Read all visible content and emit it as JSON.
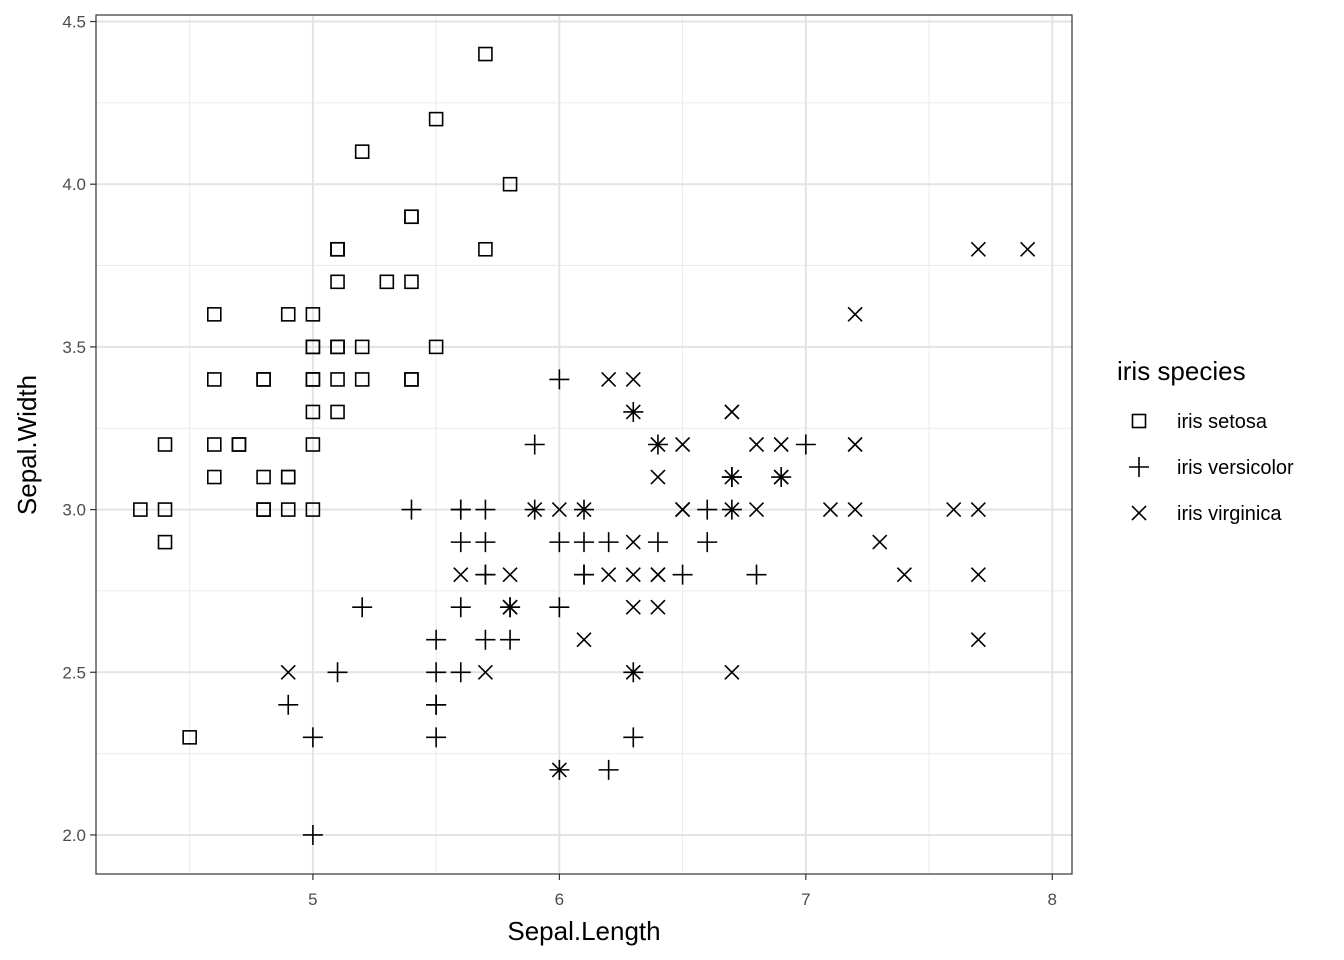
{
  "chart_data": {
    "type": "scatter",
    "title": "",
    "xlabel": "Sepal.Length",
    "ylabel": "Sepal.Width",
    "xlim": [
      4.12,
      8.08
    ],
    "ylim": [
      1.88,
      4.52
    ],
    "x_ticks": [
      5,
      6,
      7,
      8
    ],
    "y_ticks": [
      2.0,
      2.5,
      3.0,
      3.5,
      4.0,
      4.5
    ],
    "x_tick_labels": [
      "5",
      "6",
      "7",
      "8"
    ],
    "y_tick_labels": [
      "2.0",
      "2.5",
      "3.0",
      "3.5",
      "4.0",
      "4.5"
    ],
    "grid": true,
    "legend": {
      "title": "iris species",
      "placement": "right"
    },
    "series": [
      {
        "name": "iris setosa",
        "marker": "square",
        "x": [
          5.1,
          4.9,
          4.7,
          4.6,
          5.0,
          5.4,
          4.6,
          5.0,
          4.4,
          4.9,
          5.4,
          4.8,
          4.8,
          4.3,
          5.8,
          5.7,
          5.4,
          5.1,
          5.7,
          5.1,
          5.4,
          5.1,
          4.6,
          5.1,
          4.8,
          5.0,
          5.0,
          5.2,
          5.2,
          4.7,
          4.8,
          5.4,
          5.2,
          5.5,
          4.9,
          5.0,
          5.5,
          4.9,
          4.4,
          5.1,
          5.0,
          4.5,
          4.4,
          5.0,
          5.1,
          4.8,
          5.1,
          4.6,
          5.3,
          5.0
        ],
        "y": [
          3.5,
          3.0,
          3.2,
          3.1,
          3.6,
          3.9,
          3.4,
          3.4,
          2.9,
          3.1,
          3.7,
          3.4,
          3.0,
          3.0,
          4.0,
          4.4,
          3.9,
          3.5,
          3.8,
          3.8,
          3.4,
          3.7,
          3.6,
          3.3,
          3.4,
          3.0,
          3.4,
          3.5,
          3.4,
          3.2,
          3.1,
          3.4,
          4.1,
          4.2,
          3.1,
          3.2,
          3.5,
          3.6,
          3.0,
          3.4,
          3.5,
          2.3,
          3.2,
          3.5,
          3.8,
          3.0,
          3.8,
          3.2,
          3.7,
          3.3
        ]
      },
      {
        "name": "iris versicolor",
        "marker": "plus",
        "x": [
          7.0,
          6.4,
          6.9,
          5.5,
          6.5,
          5.7,
          6.3,
          4.9,
          6.6,
          5.2,
          5.0,
          5.9,
          6.0,
          6.1,
          5.6,
          6.7,
          5.6,
          5.8,
          6.2,
          5.6,
          5.9,
          6.1,
          6.3,
          6.1,
          6.4,
          6.6,
          6.8,
          6.7,
          6.0,
          5.7,
          5.5,
          5.5,
          5.8,
          6.0,
          5.4,
          6.0,
          6.7,
          6.3,
          5.6,
          5.5,
          5.5,
          6.1,
          5.8,
          5.0,
          5.6,
          5.7,
          5.7,
          6.2,
          5.1,
          5.7
        ],
        "y": [
          3.2,
          3.2,
          3.1,
          2.3,
          2.8,
          2.8,
          3.3,
          2.4,
          2.9,
          2.7,
          2.0,
          3.0,
          2.2,
          2.9,
          2.9,
          3.1,
          3.0,
          2.7,
          2.2,
          2.5,
          3.2,
          2.8,
          2.5,
          2.8,
          2.9,
          3.0,
          2.8,
          3.0,
          2.9,
          2.6,
          2.4,
          2.4,
          2.7,
          2.7,
          3.0,
          3.4,
          3.1,
          2.3,
          3.0,
          2.5,
          2.6,
          3.0,
          2.6,
          2.3,
          2.7,
          3.0,
          2.9,
          2.9,
          2.5,
          2.8
        ]
      },
      {
        "name": "iris virginica",
        "marker": "cross",
        "x": [
          6.3,
          5.8,
          7.1,
          6.3,
          6.5,
          7.6,
          4.9,
          7.3,
          6.7,
          7.2,
          6.5,
          6.4,
          6.8,
          5.7,
          5.8,
          6.4,
          6.5,
          7.7,
          7.7,
          6.0,
          6.9,
          5.6,
          7.7,
          6.3,
          6.7,
          7.2,
          6.2,
          6.1,
          6.4,
          7.2,
          7.4,
          7.9,
          6.4,
          6.3,
          6.1,
          7.7,
          6.3,
          6.4,
          6.0,
          6.9,
          6.7,
          6.9,
          5.8,
          6.8,
          6.7,
          6.7,
          6.3,
          6.5,
          6.2,
          5.9
        ],
        "y": [
          3.3,
          2.7,
          3.0,
          2.9,
          3.0,
          3.0,
          2.5,
          2.9,
          2.5,
          3.6,
          3.2,
          2.7,
          3.0,
          2.5,
          2.8,
          3.2,
          3.0,
          3.8,
          2.6,
          2.2,
          3.2,
          2.8,
          2.8,
          2.7,
          3.3,
          3.2,
          2.8,
          3.0,
          2.8,
          3.0,
          2.8,
          3.8,
          2.8,
          2.8,
          2.6,
          3.0,
          3.4,
          3.1,
          3.0,
          3.1,
          3.1,
          3.1,
          2.7,
          3.2,
          3.3,
          3.0,
          2.5,
          3.0,
          3.4,
          3.0
        ]
      }
    ]
  }
}
